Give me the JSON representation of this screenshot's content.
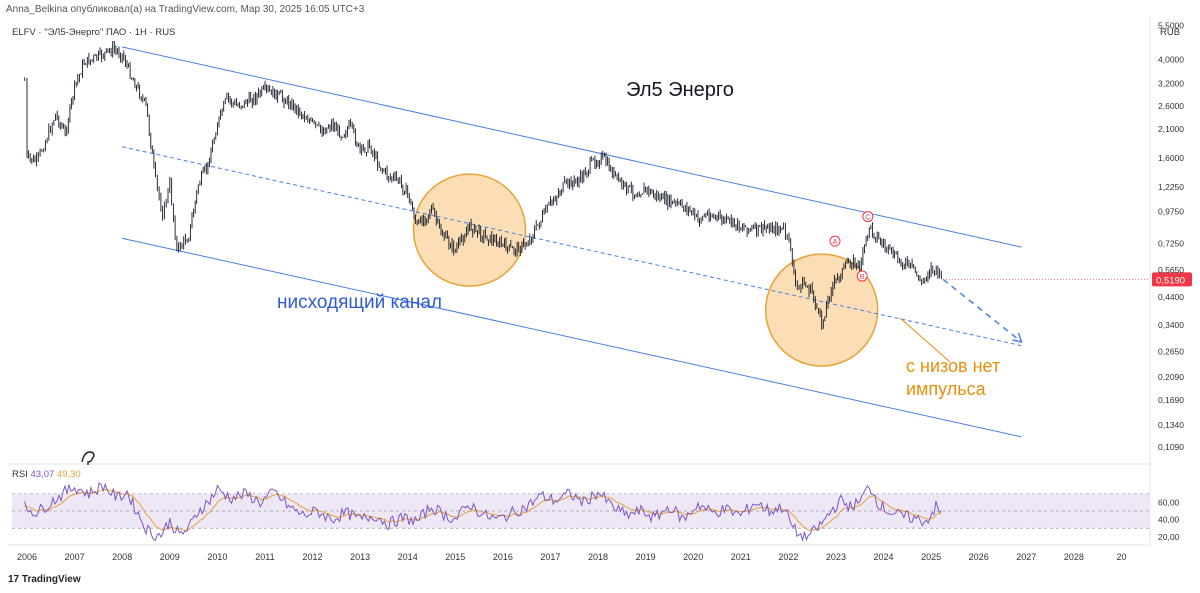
{
  "header": {
    "published_line": "Anna_Belkina опубликовал(а) на TradingView.com, Мар 30, 2025 16:05 UTC+3",
    "symbol_line": "ELFV · \"ЭЛ5-Энерго\" ПАО · 1H · RUS",
    "currency": "RUB"
  },
  "footer": {
    "logo_text": "TradingView"
  },
  "colors": {
    "channel": "#4a7fe0",
    "candles": "#131722",
    "circle_fill": "#f7c27a",
    "circle_stroke": "#e8a23a",
    "title_text": "#131722",
    "channel_label": "#2e5bd8",
    "impulse_label": "#e8900c",
    "rsi_line": "#7e57c2",
    "rsi_ma": "#e6a23c",
    "rsi_band": "#ede7f6",
    "price_tag": "#f23645",
    "wave_mark": "#f23645"
  },
  "chart_data": {
    "type": "candlestick",
    "title": "Эл5 Энерго",
    "y_scale": "log",
    "ylim": [
      0.095,
      6.0
    ],
    "xlim": [
      2005.6,
      2029.6
    ],
    "x_ticks": [
      "2006",
      "2007",
      "2008",
      "2009",
      "2010",
      "2011",
      "2012",
      "2013",
      "2014",
      "2015",
      "2016",
      "2017",
      "2018",
      "2019",
      "2020",
      "2021",
      "2022",
      "2023",
      "2024",
      "2025",
      "2026",
      "2027",
      "2028",
      "20"
    ],
    "y_ticks": [
      "5,5000",
      "4,0000",
      "3,2000",
      "2,6000",
      "2,1000",
      "1,6000",
      "1,2250",
      "0,9750",
      "0,7250",
      "0,5650",
      "0,4400",
      "0,3400",
      "0,2650",
      "0,2090",
      "0,1690",
      "0,1340",
      "0,1090"
    ],
    "last_price": "0,5190",
    "last_price_value": 0.519,
    "price_path": [
      [
        2005.95,
        3.3
      ],
      [
        2006.0,
        1.6
      ],
      [
        2006.2,
        1.55
      ],
      [
        2006.35,
        1.8
      ],
      [
        2006.6,
        2.4
      ],
      [
        2006.8,
        2.0
      ],
      [
        2007.0,
        3.1
      ],
      [
        2007.2,
        3.9
      ],
      [
        2007.5,
        4.1
      ],
      [
        2007.8,
        4.4
      ],
      [
        2008.0,
        4.2
      ],
      [
        2008.2,
        3.4
      ],
      [
        2008.5,
        2.6
      ],
      [
        2008.7,
        1.3
      ],
      [
        2008.85,
        0.95
      ],
      [
        2009.0,
        1.25
      ],
      [
        2009.15,
        0.68
      ],
      [
        2009.4,
        0.78
      ],
      [
        2009.6,
        1.25
      ],
      [
        2009.8,
        1.5
      ],
      [
        2010.0,
        2.2
      ],
      [
        2010.2,
        2.8
      ],
      [
        2010.4,
        2.6
      ],
      [
        2010.7,
        2.75
      ],
      [
        2011.0,
        3.0
      ],
      [
        2011.3,
        2.85
      ],
      [
        2011.6,
        2.6
      ],
      [
        2011.8,
        2.4
      ],
      [
        2012.0,
        2.2
      ],
      [
        2012.2,
        2.05
      ],
      [
        2012.4,
        2.2
      ],
      [
        2012.6,
        2.0
      ],
      [
        2012.8,
        2.15
      ],
      [
        2013.0,
        1.7
      ],
      [
        2013.2,
        1.8
      ],
      [
        2013.4,
        1.5
      ],
      [
        2013.6,
        1.35
      ],
      [
        2013.8,
        1.3
      ],
      [
        2014.0,
        1.15
      ],
      [
        2014.2,
        0.85
      ],
      [
        2014.5,
        1.0
      ],
      [
        2014.7,
        0.8
      ],
      [
        2015.0,
        0.68
      ],
      [
        2015.3,
        0.85
      ],
      [
        2015.6,
        0.78
      ],
      [
        2015.9,
        0.73
      ],
      [
        2016.2,
        0.68
      ],
      [
        2016.5,
        0.72
      ],
      [
        2016.8,
        0.9
      ],
      [
        2017.0,
        1.05
      ],
      [
        2017.3,
        1.25
      ],
      [
        2017.6,
        1.3
      ],
      [
        2017.9,
        1.55
      ],
      [
        2018.1,
        1.6
      ],
      [
        2018.3,
        1.4
      ],
      [
        2018.5,
        1.25
      ],
      [
        2018.8,
        1.15
      ],
      [
        2019.0,
        1.2
      ],
      [
        2019.3,
        1.1
      ],
      [
        2019.6,
        1.05
      ],
      [
        2019.9,
        1.0
      ],
      [
        2020.1,
        0.9
      ],
      [
        2020.3,
        0.95
      ],
      [
        2020.5,
        0.92
      ],
      [
        2020.8,
        0.88
      ],
      [
        2021.0,
        0.85
      ],
      [
        2021.3,
        0.82
      ],
      [
        2021.6,
        0.84
      ],
      [
        2021.9,
        0.82
      ],
      [
        2022.05,
        0.7
      ],
      [
        2022.15,
        0.48
      ],
      [
        2022.3,
        0.5
      ],
      [
        2022.5,
        0.46
      ],
      [
        2022.7,
        0.34
      ],
      [
        2022.9,
        0.48
      ],
      [
        2023.1,
        0.55
      ],
      [
        2023.3,
        0.62
      ],
      [
        2023.5,
        0.58
      ],
      [
        2023.7,
        0.85
      ],
      [
        2023.9,
        0.75
      ],
      [
        2024.1,
        0.68
      ],
      [
        2024.3,
        0.62
      ],
      [
        2024.6,
        0.58
      ],
      [
        2024.8,
        0.5
      ],
      [
        2025.0,
        0.58
      ],
      [
        2025.25,
        0.519
      ]
    ],
    "channel": {
      "upper": [
        [
          2008.0,
          4.5
        ],
        [
          2026.9,
          0.7
        ]
      ],
      "middle": [
        [
          2008.0,
          1.78
        ],
        [
          2026.9,
          0.28
        ]
      ],
      "lower": [
        [
          2008.0,
          0.76
        ],
        [
          2026.9,
          0.12
        ]
      ],
      "forecast": [
        [
          2025.25,
          0.519
        ],
        [
          2026.9,
          0.29
        ]
      ]
    },
    "circles": [
      {
        "x": 2015.3,
        "y": 0.82
      },
      {
        "x": 2022.7,
        "y": 0.39
      }
    ],
    "wave_labels": [
      {
        "text": "A",
        "x": 2022.98,
        "y": 0.74
      },
      {
        "text": "B",
        "x": 2023.55,
        "y": 0.535
      },
      {
        "text": "C",
        "x": 2023.67,
        "y": 0.93
      }
    ],
    "annotations": {
      "channel_label": "нисходящий канал",
      "impulse_line1": "с низов нет",
      "impulse_line2": "импульса"
    },
    "rsi": {
      "label": "RSI",
      "value": "43,07",
      "ma_value": "49,30",
      "ticks": [
        "60,00",
        "40,00",
        "20,00"
      ],
      "band": [
        30,
        70
      ],
      "ylim": [
        14,
        100
      ],
      "path": [
        [
          2005.95,
          55
        ],
        [
          2006.2,
          48
        ],
        [
          2006.5,
          60
        ],
        [
          2006.8,
          72
        ],
        [
          2007.0,
          78
        ],
        [
          2007.3,
          70
        ],
        [
          2007.6,
          80
        ],
        [
          2007.9,
          65
        ],
        [
          2008.1,
          72
        ],
        [
          2008.3,
          50
        ],
        [
          2008.5,
          30
        ],
        [
          2008.7,
          20
        ],
        [
          2008.85,
          25
        ],
        [
          2009.0,
          38
        ],
        [
          2009.2,
          22
        ],
        [
          2009.4,
          30
        ],
        [
          2009.6,
          50
        ],
        [
          2009.8,
          60
        ],
        [
          2010.0,
          75
        ],
        [
          2010.3,
          65
        ],
        [
          2010.6,
          70
        ],
        [
          2010.9,
          60
        ],
        [
          2011.2,
          72
        ],
        [
          2011.5,
          55
        ],
        [
          2011.8,
          45
        ],
        [
          2012.1,
          50
        ],
        [
          2012.4,
          40
        ],
        [
          2012.7,
          48
        ],
        [
          2013.0,
          40
        ],
        [
          2013.3,
          45
        ],
        [
          2013.6,
          35
        ],
        [
          2013.9,
          42
        ],
        [
          2014.2,
          38
        ],
        [
          2014.5,
          55
        ],
        [
          2014.8,
          45
        ],
        [
          2015.0,
          40
        ],
        [
          2015.3,
          58
        ],
        [
          2015.6,
          45
        ],
        [
          2015.9,
          40
        ],
        [
          2016.2,
          48
        ],
        [
          2016.5,
          55
        ],
        [
          2016.8,
          68
        ],
        [
          2017.1,
          62
        ],
        [
          2017.4,
          70
        ],
        [
          2017.7,
          60
        ],
        [
          2018.0,
          72
        ],
        [
          2018.3,
          55
        ],
        [
          2018.6,
          45
        ],
        [
          2018.9,
          50
        ],
        [
          2019.2,
          42
        ],
        [
          2019.5,
          55
        ],
        [
          2019.8,
          40
        ],
        [
          2020.1,
          58
        ],
        [
          2020.4,
          48
        ],
        [
          2020.7,
          52
        ],
        [
          2021.0,
          45
        ],
        [
          2021.3,
          60
        ],
        [
          2021.6,
          50
        ],
        [
          2021.9,
          55
        ],
        [
          2022.1,
          30
        ],
        [
          2022.3,
          18
        ],
        [
          2022.5,
          24
        ],
        [
          2022.7,
          35
        ],
        [
          2022.9,
          50
        ],
        [
          2023.1,
          62
        ],
        [
          2023.3,
          55
        ],
        [
          2023.5,
          60
        ],
        [
          2023.7,
          80
        ],
        [
          2023.9,
          58
        ],
        [
          2024.1,
          50
        ],
        [
          2024.3,
          45
        ],
        [
          2024.6,
          42
        ],
        [
          2024.9,
          38
        ],
        [
          2025.1,
          55
        ],
        [
          2025.25,
          43
        ]
      ]
    }
  }
}
